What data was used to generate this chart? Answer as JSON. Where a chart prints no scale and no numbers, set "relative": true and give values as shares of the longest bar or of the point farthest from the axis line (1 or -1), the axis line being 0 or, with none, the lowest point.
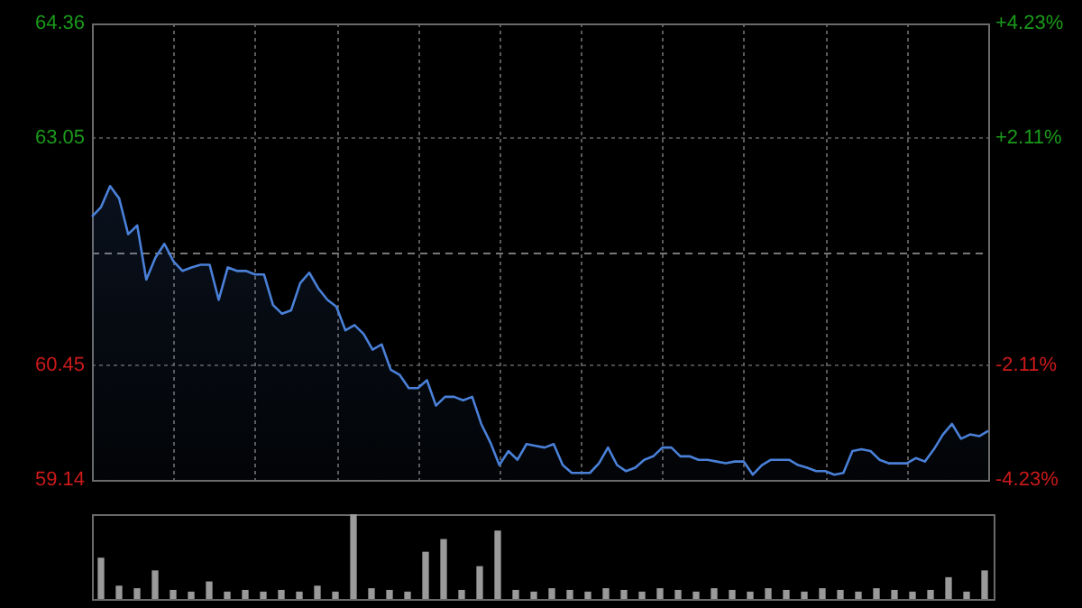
{
  "chart_data": [
    {
      "type": "area",
      "categories": [
        null,
        null,
        null,
        null,
        null,
        null,
        null,
        null,
        null,
        null,
        null,
        null,
        null,
        null,
        null,
        null,
        null,
        null,
        null,
        null,
        null,
        null,
        null,
        null,
        null,
        null,
        null,
        null,
        null,
        null,
        null,
        null,
        null,
        null,
        null,
        null,
        null,
        null,
        null,
        null,
        null,
        null,
        null,
        null,
        null,
        null,
        null,
        null,
        null,
        null,
        null,
        null,
        null,
        null,
        null,
        null,
        null,
        null,
        null,
        null,
        null,
        null,
        null,
        null,
        null,
        null,
        null,
        null,
        null,
        null,
        null,
        null,
        null,
        null,
        null,
        null,
        null,
        null,
        null,
        null,
        null,
        null,
        null,
        null,
        null,
        null,
        null,
        null,
        null,
        null,
        null,
        null,
        null,
        null,
        null,
        null,
        null,
        null,
        null,
        null
      ],
      "series": [
        {
          "color": "#4a80d8",
          "values": [
            62.15,
            62.26,
            62.5,
            62.36,
            61.95,
            62.05,
            61.43,
            61.68,
            61.84,
            61.64,
            61.53,
            61.57,
            61.6,
            61.6,
            61.2,
            61.57,
            61.53,
            61.53,
            61.49,
            61.49,
            61.14,
            61.04,
            61.08,
            61.39,
            61.51,
            61.33,
            61.2,
            61.12,
            60.85,
            60.91,
            60.81,
            60.63,
            60.69,
            60.4,
            60.34,
            60.19,
            60.19,
            60.28,
            59.99,
            60.09,
            60.09,
            60.05,
            60.09,
            59.78,
            59.57,
            59.31,
            59.47,
            59.37,
            59.55,
            59.53,
            59.51,
            59.55,
            59.31,
            59.22,
            59.22,
            59.22,
            59.33,
            59.51,
            59.31,
            59.24,
            59.28,
            59.37,
            59.41,
            59.51,
            59.51,
            59.41,
            59.41,
            59.37,
            59.37,
            59.35,
            59.33,
            59.35,
            59.35,
            59.2,
            59.31,
            59.37,
            59.37,
            59.37,
            59.31,
            59.28,
            59.24,
            59.24,
            59.2,
            59.22,
            59.47,
            59.49,
            59.47,
            59.37,
            59.33,
            59.33,
            59.33,
            59.39,
            59.35,
            59.49,
            59.66,
            59.78,
            59.61,
            59.66,
            59.64,
            59.7
          ]
        }
      ],
      "ylim": [
        59.14,
        64.36
      ],
      "yticks": [
        59.14,
        60.45,
        63.05,
        64.36
      ],
      "y2lim": [
        -4.23,
        4.23
      ],
      "y2ticks": [
        {
          "value": -4.23,
          "label": "-4.23%"
        },
        {
          "value": -2.11,
          "label": "-2.11%"
        },
        {
          "value": 2.11,
          "label": "+2.11%"
        },
        {
          "value": 4.23,
          "label": "+4.23%"
        }
      ],
      "ref_lines": [
        {
          "axis": "y",
          "value": 61.75,
          "line_style": "dashed"
        }
      ],
      "grid": true,
      "legend": false,
      "marker": "none",
      "line_style": "solid"
    },
    {
      "type": "bar",
      "relative": true,
      "categories": [
        null,
        null,
        null,
        null,
        null,
        null,
        null,
        null,
        null,
        null,
        null,
        null,
        null,
        null,
        null,
        null,
        null,
        null,
        null,
        null,
        null,
        null,
        null,
        null,
        null,
        null,
        null,
        null,
        null,
        null,
        null,
        null,
        null,
        null,
        null,
        null,
        null,
        null,
        null,
        null,
        null,
        null,
        null,
        null,
        null,
        null,
        null,
        null,
        null,
        null
      ],
      "color": "#9a9a9a",
      "values": [
        0.48,
        0.15,
        0.12,
        0.33,
        0.1,
        0.08,
        0.2,
        0.08,
        0.1,
        0.08,
        0.1,
        0.08,
        0.15,
        0.08,
        1,
        0.12,
        0.1,
        0.08,
        0.55,
        0.7,
        0.1,
        0.38,
        0.8,
        0.1,
        0.08,
        0.12,
        0.1,
        0.08,
        0.12,
        0.1,
        0.08,
        0.12,
        0.1,
        0.08,
        0.12,
        0.1,
        0.08,
        0.12,
        0.1,
        0.08,
        0.12,
        0.1,
        0.08,
        0.12,
        0.1,
        0.08,
        0.1,
        0.25,
        0.08,
        0.33
      ],
      "legend": false
    }
  ]
}
